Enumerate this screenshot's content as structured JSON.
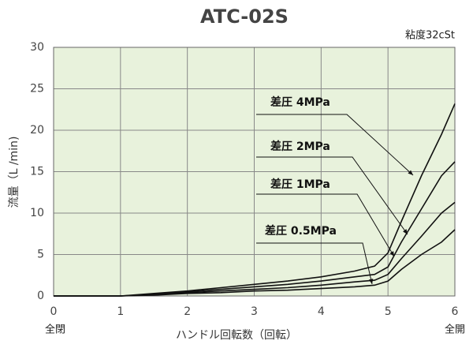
{
  "chart_data": {
    "type": "line",
    "title": "ATC-02S",
    "subtitle": "粘度32cSt",
    "x_label": "ハンドル回転数（回転）",
    "y_label": "流量（L /min)",
    "x_start_label": "全閉",
    "x_end_label": "全開",
    "x": [
      0,
      0.5,
      1,
      1.5,
      2,
      2.5,
      3,
      3.5,
      4,
      4.5,
      4.8,
      5,
      5.2,
      5.5,
      5.8,
      6
    ],
    "series": [
      {
        "name": "差圧 4MPa",
        "color": "#111111",
        "values": [
          0,
          0,
          0,
          0.3,
          0.6,
          1.0,
          1.4,
          1.8,
          2.3,
          3.0,
          3.6,
          5.2,
          9,
          14.5,
          19.5,
          23.2
        ]
      },
      {
        "name": "差圧 2MPa",
        "color": "#111111",
        "values": [
          0,
          0,
          0,
          0.2,
          0.5,
          0.8,
          1.1,
          1.4,
          1.8,
          2.3,
          2.6,
          3.5,
          6.5,
          10.5,
          14.5,
          16.2
        ]
      },
      {
        "name": "差圧 1MPa",
        "color": "#111111",
        "values": [
          0,
          0,
          0,
          0.15,
          0.4,
          0.6,
          0.8,
          1.0,
          1.3,
          1.7,
          1.9,
          2.6,
          4.5,
          7.2,
          10,
          11.3
        ]
      },
      {
        "name": "差圧 0.5MPa",
        "color": "#111111",
        "values": [
          0,
          0,
          0,
          0.1,
          0.3,
          0.4,
          0.6,
          0.7,
          0.9,
          1.1,
          1.3,
          1.8,
          3.2,
          5.0,
          6.5,
          8.0
        ]
      }
    ],
    "xlim": [
      0,
      6
    ],
    "xticks": [
      0,
      1,
      2,
      3,
      4,
      5,
      6
    ],
    "ylim": [
      0,
      30
    ],
    "yticks": [
      0,
      5,
      10,
      15,
      20,
      25,
      30
    ],
    "grid": true,
    "plot_background": "#e8f2dc"
  }
}
